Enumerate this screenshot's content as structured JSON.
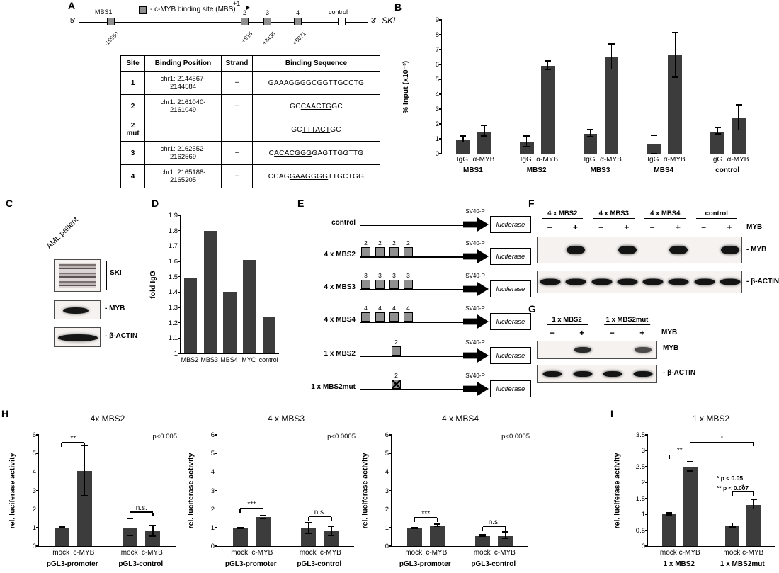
{
  "panels": {
    "A": "A",
    "B": "B",
    "C": "C",
    "D": "D",
    "E": "E",
    "F": "F",
    "G": "G",
    "H": "H",
    "I": "I"
  },
  "panelA": {
    "legend_label": "- c-MYB binding site (MBS)",
    "five_prime": "5'",
    "three_prime": "3'",
    "gene_name": "SKI",
    "mbs1_label": "MBS1",
    "tss_label": "+1",
    "box2": "2",
    "box3": "3",
    "box4": "4",
    "control_label": "control",
    "pos_mbs1": "-15550",
    "pos2": "+915",
    "pos3": "+2435",
    "pos4": "+5071",
    "table": {
      "headers": [
        "Site",
        "Binding Position",
        "Strand",
        "Binding Sequence"
      ],
      "rows": [
        {
          "site": "1",
          "position": "chr1: 2144567-2144584",
          "strand": "+",
          "seq_pre": "G",
          "seq_u": "AAAGGGG",
          "seq_post": "CGGTTGCCTG"
        },
        {
          "site": "2",
          "position": "chr1: 2161040-2161049",
          "strand": "+",
          "seq_pre": "GC",
          "seq_u": "CAACTG",
          "seq_post": "GC"
        },
        {
          "site": "2 mut",
          "position": "",
          "strand": "",
          "seq_pre": "GC",
          "seq_u": "TTTACT",
          "seq_post": "GC"
        },
        {
          "site": "3",
          "position": "chr1: 2162552-2162569",
          "strand": "+",
          "seq_pre": "C",
          "seq_u": "ACACGGG",
          "seq_post": "GAGTTGGTTG"
        },
        {
          "site": "4",
          "position": "chr1: 2165188-2165205",
          "strand": "+",
          "seq_pre": "CCAG",
          "seq_u": "GAAGGGG",
          "seq_post": "TTGCTGG"
        }
      ]
    }
  },
  "panelC": {
    "sample_label": "AML patient",
    "blot1_label": "SKI",
    "blot2_label": "- MYB",
    "blot3_label": "- β-ACTIN"
  },
  "panelE": {
    "svp": "SV40-P",
    "luc": "luciferase",
    "rows": [
      {
        "label": "control",
        "boxes": []
      },
      {
        "label": "4 x MBS2",
        "boxes": [
          "2",
          "2",
          "2",
          "2"
        ]
      },
      {
        "label": "4 x MBS3",
        "boxes": [
          "3",
          "3",
          "3",
          "3"
        ]
      },
      {
        "label": "4 x MBS4",
        "boxes": [
          "4",
          "4",
          "4",
          "4"
        ]
      },
      {
        "label": "1 x MBS2",
        "boxes": [
          "2"
        ]
      },
      {
        "label": "1 x MBS2mut",
        "boxes": [
          "2"
        ],
        "mut": true
      }
    ]
  },
  "panelF": {
    "groups": [
      "4 x MBS2",
      "4 x MBS3",
      "4 x MBS4",
      "control"
    ],
    "lanes": [
      "−",
      "+",
      "−",
      "+",
      "−",
      "+",
      "−",
      "+"
    ],
    "myb_label": "MYB",
    "blot1_label": "- MYB",
    "blot2_label": "- β-ACTIN",
    "bands1": [
      0,
      1,
      0,
      1,
      0,
      1,
      0,
      1
    ],
    "bands2": [
      1,
      1,
      1,
      1,
      1,
      1,
      1,
      1
    ]
  },
  "panelG": {
    "groups": [
      "1 x MBS2",
      "1 x MBS2mut"
    ],
    "lanes": [
      "−",
      "+",
      "−",
      "+"
    ],
    "myb_label": "MYB",
    "blot1_label": "MYB",
    "blot2_label": "- β-ACTIN",
    "bands1": [
      0,
      0.9,
      0,
      0.75
    ],
    "bands2": [
      1,
      1,
      1,
      1
    ]
  },
  "chart_data": [
    {
      "id": "B",
      "type": "bar",
      "ylabel": "% Input (x10⁻³)",
      "ylim": [
        0,
        9
      ],
      "ystep": 1,
      "groups": [
        {
          "label": "MBS1",
          "size": 2
        },
        {
          "label": "MBS2",
          "size": 2
        },
        {
          "label": "MBS3",
          "size": 2
        },
        {
          "label": "MBS4",
          "size": 2
        },
        {
          "label": "control",
          "size": 2
        }
      ],
      "bars": [
        {
          "label": "IgG",
          "value": 0.95,
          "err": 0.2
        },
        {
          "label": "α-MYB",
          "value": 1.5,
          "err": 0.35
        },
        {
          "label": "IgG",
          "value": 0.8,
          "err": 0.35
        },
        {
          "label": "α-MYB",
          "value": 5.9,
          "err": 0.3
        },
        {
          "label": "IgG",
          "value": 1.35,
          "err": 0.25
        },
        {
          "label": "α-MYB",
          "value": 6.5,
          "err": 0.85
        },
        {
          "label": "IgG",
          "value": 0.6,
          "err": 0.6
        },
        {
          "label": "α-MYB",
          "value": 6.6,
          "err": 1.5
        },
        {
          "label": "IgG",
          "value": 1.5,
          "err": 0.2
        },
        {
          "label": "α-MYB",
          "value": 2.4,
          "err": 0.85
        }
      ]
    },
    {
      "id": "D",
      "type": "bar",
      "ylabel": "fold IgG",
      "ylim": [
        1,
        1.9
      ],
      "ystep": 0.1,
      "xfont": 9,
      "bars": [
        {
          "label": "MBS2",
          "value": 1.49
        },
        {
          "label": "MBS3",
          "value": 1.8
        },
        {
          "label": "MBS4",
          "value": 1.4
        },
        {
          "label": "MYC",
          "value": 1.61
        },
        {
          "label": "control",
          "value": 1.24
        }
      ]
    },
    {
      "id": "H1",
      "type": "bar",
      "title": "4x MBS2",
      "ptext": "p<0.005",
      "ylabel": "rel. luciferase activity",
      "ylim": [
        0,
        6
      ],
      "ystep": 1,
      "groups": [
        {
          "label": "pGL3-promoter",
          "size": 2
        },
        {
          "label": "pGL3-control",
          "size": 2
        }
      ],
      "bars": [
        {
          "label": "mock",
          "value": 1.0,
          "err": 0.04
        },
        {
          "label": "c-MYB",
          "value": 4.05,
          "err": 1.35
        },
        {
          "label": "mock",
          "value": 1.0,
          "err": 0.45
        },
        {
          "label": "c-MYB",
          "value": 0.8,
          "err": 0.3
        }
      ],
      "annotations": [
        {
          "i1": 0,
          "i2": 1,
          "y": 5.55,
          "label": "**"
        },
        {
          "i1": 2,
          "i2": 3,
          "y": 1.8,
          "label": "n.s."
        }
      ]
    },
    {
      "id": "H2",
      "type": "bar",
      "title": "4 x MBS3",
      "ptext": "p<0.0005",
      "ylabel": "rel. luciferase activity",
      "ylim": [
        0,
        6
      ],
      "ystep": 1,
      "groups": [
        {
          "label": "pGL3-promoter",
          "size": 2
        },
        {
          "label": "pGL3-control",
          "size": 2
        }
      ],
      "bars": [
        {
          "label": "mock",
          "value": 0.95,
          "err": 0.04
        },
        {
          "label": "c-MYB",
          "value": 1.55,
          "err": 0.08
        },
        {
          "label": "mock",
          "value": 0.95,
          "err": 0.3
        },
        {
          "label": "c-MYB",
          "value": 0.8,
          "err": 0.25
        }
      ],
      "annotations": [
        {
          "i1": 0,
          "i2": 1,
          "y": 2.0,
          "label": "***"
        },
        {
          "i1": 2,
          "i2": 3,
          "y": 1.55,
          "label": "n.s."
        }
      ]
    },
    {
      "id": "H3",
      "type": "bar",
      "title": "4 x MBS4",
      "ptext": "p<0.0005",
      "ylabel": "rel. luciferase activity",
      "ylim": [
        0,
        6
      ],
      "ystep": 1,
      "groups": [
        {
          "label": "pGL3-promoter",
          "size": 2
        },
        {
          "label": "pGL3-control",
          "size": 2
        }
      ],
      "bars": [
        {
          "label": "mock",
          "value": 0.95,
          "err": 0.04
        },
        {
          "label": "c-MYB",
          "value": 1.1,
          "err": 0.06
        },
        {
          "label": "mock",
          "value": 0.55,
          "err": 0.05
        },
        {
          "label": "c-MYB",
          "value": 0.55,
          "err": 0.18
        }
      ],
      "annotations": [
        {
          "i1": 0,
          "i2": 1,
          "y": 1.5,
          "label": "***"
        },
        {
          "i1": 2,
          "i2": 3,
          "y": 1.05,
          "label": "n.s."
        }
      ]
    },
    {
      "id": "I",
      "type": "bar",
      "title": "1 x MBS2",
      "ylabel": "rel. luciferase activity",
      "ylim": [
        0,
        3.5
      ],
      "ystep": 0.5,
      "groups": [
        {
          "label": "1 x MBS2",
          "size": 2
        },
        {
          "label": "1 x MBS2mut",
          "size": 2
        }
      ],
      "bars": [
        {
          "label": "mock",
          "value": 1.0,
          "err": 0.03
        },
        {
          "label": "c-MYB",
          "value": 2.5,
          "err": 0.15
        },
        {
          "label": "mock",
          "value": 0.65,
          "err": 0.06
        },
        {
          "label": "c-MYB",
          "value": 1.3,
          "err": 0.15
        }
      ],
      "annotations": [
        {
          "i1": 0,
          "i2": 1,
          "y": 2.85,
          "label": "**"
        },
        {
          "i1": 1,
          "i2": 3,
          "y": 3.25,
          "label": "*"
        },
        {
          "i1": 2,
          "i2": 3,
          "y": 1.7,
          "label": "*"
        }
      ],
      "note_lines": [
        "* p < 0.05",
        "** p < 0.007"
      ]
    }
  ]
}
